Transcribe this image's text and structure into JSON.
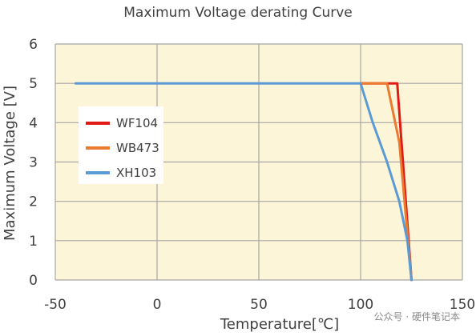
{
  "chart_data": {
    "type": "line",
    "title": "Maximum Voltage derating Curve",
    "xlabel": "Temperature[℃]",
    "ylabel": "Maximum Voltage [V]",
    "xlim": [
      -50,
      150
    ],
    "ylim": [
      0,
      6
    ],
    "x_ticks": [
      -50,
      0,
      50,
      100,
      150
    ],
    "y_ticks": [
      0,
      1,
      2,
      3,
      4,
      5,
      6
    ],
    "grid": true,
    "legend_position": "left",
    "series": [
      {
        "name": "WF104",
        "color": "#e01b16",
        "points": [
          [
            100,
            5
          ],
          [
            116,
            5
          ],
          [
            118,
            5
          ],
          [
            125,
            0
          ]
        ]
      },
      {
        "name": "WB473",
        "color": "#ea7b2f",
        "points": [
          [
            100,
            5
          ],
          [
            113,
            5
          ],
          [
            119,
            3.5
          ],
          [
            125,
            0
          ]
        ]
      },
      {
        "name": "XH103",
        "color": "#5b9bd5",
        "points": [
          [
            -40,
            5
          ],
          [
            100,
            5
          ],
          [
            106,
            4
          ],
          [
            113,
            3
          ],
          [
            119,
            2
          ],
          [
            123,
            1
          ],
          [
            125,
            0
          ]
        ]
      }
    ]
  },
  "watermark": {
    "text": "公众号 · 硬件笔记本"
  },
  "colors": {
    "plot_background": "#fdf5d8",
    "grid": "#a6a6a6",
    "text": "#404040"
  }
}
